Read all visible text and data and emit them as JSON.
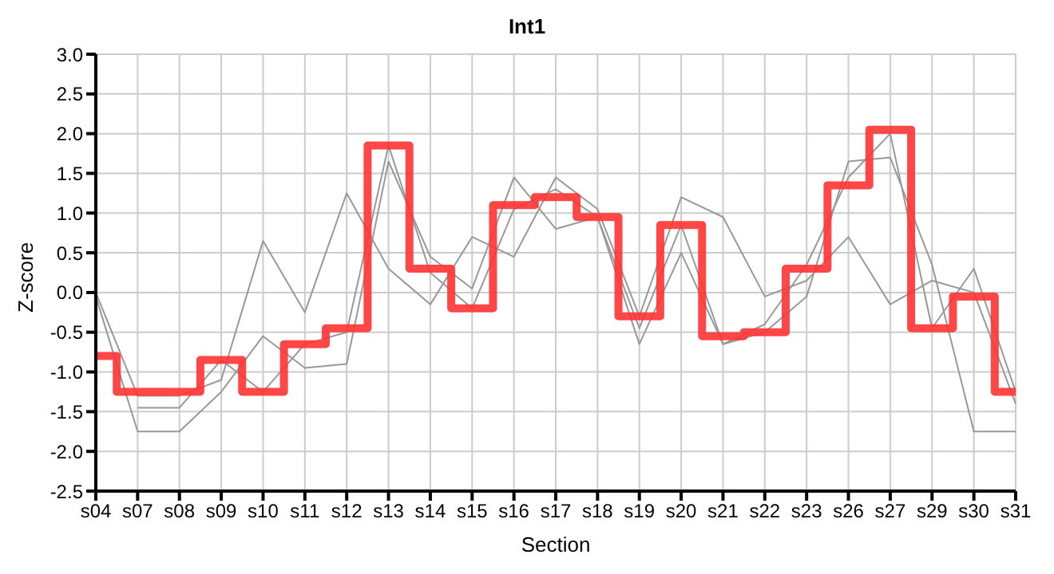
{
  "chart_data": {
    "type": "line",
    "title": "Int1",
    "xlabel": "Section",
    "ylabel": "Z-score",
    "categories": [
      "s04",
      "s07",
      "s08",
      "s09",
      "s10",
      "s11",
      "s12",
      "s13",
      "s14",
      "s15",
      "s16",
      "s17",
      "s18",
      "s19",
      "s20",
      "s21",
      "s22",
      "s23",
      "s26",
      "s27",
      "s29",
      "s30",
      "s31"
    ],
    "series": [
      {
        "type": "line",
        "color": "#999999",
        "values": [
          0.0,
          -1.3,
          -1.3,
          -1.1,
          0.65,
          -0.25,
          1.25,
          0.3,
          -0.15,
          0.7,
          0.45,
          1.45,
          1.05,
          -0.3,
          1.2,
          0.95,
          -0.05,
          0.15,
          0.7,
          -0.15,
          0.15,
          0.0,
          -1.4
        ]
      },
      {
        "type": "line",
        "color": "#999999",
        "values": [
          -0.05,
          -1.75,
          -1.75,
          -1.25,
          -0.55,
          -0.95,
          -0.9,
          1.65,
          0.45,
          0.05,
          1.45,
          0.8,
          0.95,
          -0.65,
          0.5,
          -0.65,
          -0.5,
          -0.05,
          1.65,
          1.7,
          0.35,
          -1.75,
          -1.75
        ]
      },
      {
        "type": "line",
        "color": "#999999",
        "values": [
          null,
          -1.45,
          -1.45,
          -0.85,
          -1.25,
          -0.65,
          -0.5,
          1.85,
          0.25,
          -0.2,
          1.05,
          1.3,
          0.95,
          -0.45,
          0.85,
          -0.65,
          -0.4,
          0.35,
          1.45,
          2.0,
          -0.45,
          0.3,
          -1.25
        ]
      },
      {
        "type": "step",
        "color": "#ff3333",
        "values": [
          -0.8,
          -1.25,
          -1.25,
          -0.85,
          -1.25,
          -0.65,
          -0.45,
          1.85,
          0.3,
          -0.2,
          1.1,
          1.2,
          0.95,
          -0.3,
          0.85,
          -0.55,
          -0.5,
          0.3,
          1.35,
          2.05,
          -0.45,
          -0.05,
          -1.25
        ]
      }
    ],
    "ylim": [
      -2.5,
      3
    ],
    "yticks": [
      {
        "value": -2.5,
        "label": "-2.5"
      },
      {
        "value": -2,
        "label": "-2.0"
      },
      {
        "value": -1.5,
        "label": "-1.5"
      },
      {
        "value": -1,
        "label": "-1.0"
      },
      {
        "value": -0.5,
        "label": "-0.5"
      },
      {
        "value": 0,
        "label": "0.0"
      },
      {
        "value": 0.5,
        "label": "0.5"
      },
      {
        "value": 1,
        "label": "1.0"
      },
      {
        "value": 1.5,
        "label": "1.5"
      },
      {
        "value": 2,
        "label": "2.0"
      },
      {
        "value": 2.5,
        "label": "2.5"
      },
      {
        "value": 3,
        "label": "3.0"
      }
    ],
    "grid": true,
    "legend": false,
    "marker": "none",
    "line_style": "solid"
  }
}
